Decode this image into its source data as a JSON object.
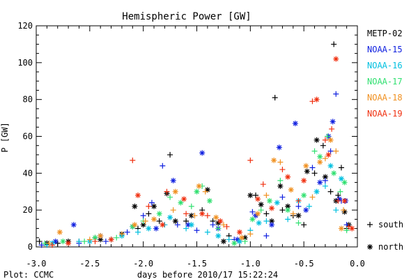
{
  "chart_data": {
    "type": "scatter",
    "title": "Hemispheric Power [GW]",
    "xlabel": "days before 2010/17 15:22:24",
    "ylabel": "P [GW]",
    "xlim": [
      -3.0,
      0.0
    ],
    "ylim": [
      0,
      120
    ],
    "x_ticks": [
      "-3.0",
      "-2.5",
      "-2.0",
      "-1.5",
      "-1.0",
      "-0.5",
      "0.0"
    ],
    "y_ticks": [
      "0",
      "20",
      "40",
      "60",
      "80",
      "100",
      "120"
    ],
    "grid": false,
    "legend_position": "right",
    "hemisphere_legend": [
      {
        "symbol": "+",
        "label": "south"
      },
      {
        "symbol": "*",
        "label": "north"
      }
    ],
    "series": [
      {
        "name": "METP-02",
        "color": "#000000",
        "south": [
          [
            -2.97,
            3
          ],
          [
            -2.8,
            2
          ],
          [
            -2.6,
            3
          ],
          [
            -2.45,
            5
          ],
          [
            -2.3,
            4
          ],
          [
            -2.05,
            10
          ],
          [
            -1.95,
            18
          ],
          [
            -1.85,
            14
          ],
          [
            -1.75,
            50
          ],
          [
            -1.6,
            14
          ],
          [
            -1.45,
            20
          ],
          [
            -1.35,
            14
          ],
          [
            -1.2,
            6
          ],
          [
            -1.1,
            3
          ],
          [
            -0.95,
            28
          ],
          [
            -0.85,
            18
          ],
          [
            -0.77,
            81
          ],
          [
            -0.7,
            20
          ],
          [
            -0.6,
            17
          ],
          [
            -0.5,
            12
          ],
          [
            -0.4,
            40
          ],
          [
            -0.32,
            55
          ],
          [
            -0.25,
            30
          ],
          [
            -0.22,
            110
          ],
          [
            -0.18,
            28
          ],
          [
            -0.15,
            43
          ],
          [
            -0.1,
            10
          ]
        ],
        "north": [
          [
            -2.9,
            2
          ],
          [
            -2.7,
            3
          ],
          [
            -2.4,
            4
          ],
          [
            -2.2,
            7
          ],
          [
            -2.08,
            22
          ],
          [
            -2.0,
            12
          ],
          [
            -1.9,
            22
          ],
          [
            -1.78,
            29
          ],
          [
            -1.7,
            14
          ],
          [
            -1.55,
            17
          ],
          [
            -1.4,
            31
          ],
          [
            -1.3,
            13
          ],
          [
            -1.25,
            3
          ],
          [
            -1.05,
            5
          ],
          [
            -1.0,
            28
          ],
          [
            -0.9,
            23
          ],
          [
            -0.8,
            14
          ],
          [
            -0.72,
            33
          ],
          [
            -0.65,
            22
          ],
          [
            -0.55,
            17
          ],
          [
            -0.47,
            41
          ],
          [
            -0.38,
            58
          ],
          [
            -0.3,
            38
          ],
          [
            -0.2,
            25
          ],
          [
            -0.12,
            19
          ],
          [
            -0.08,
            12
          ]
        ]
      },
      {
        "name": "NOAA-15",
        "color": "#1020e0",
        "south": [
          [
            -2.95,
            1
          ],
          [
            -2.6,
            2
          ],
          [
            -2.35,
            3
          ],
          [
            -2.15,
            8
          ],
          [
            -2.0,
            17
          ],
          [
            -1.92,
            24
          ],
          [
            -1.82,
            44
          ],
          [
            -1.68,
            12
          ],
          [
            -1.5,
            9
          ],
          [
            -1.35,
            12
          ],
          [
            -1.15,
            4
          ],
          [
            -0.98,
            19
          ],
          [
            -0.85,
            6
          ],
          [
            -0.7,
            27
          ],
          [
            -0.55,
            22
          ],
          [
            -0.42,
            43
          ],
          [
            -0.3,
            36
          ],
          [
            -0.25,
            52
          ],
          [
            -0.2,
            83
          ],
          [
            -0.15,
            25
          ],
          [
            -0.1,
            12
          ]
        ],
        "north": [
          [
            -2.82,
            3
          ],
          [
            -2.65,
            12
          ],
          [
            -2.4,
            6
          ],
          [
            -2.1,
            11
          ],
          [
            -1.88,
            10
          ],
          [
            -1.72,
            36
          ],
          [
            -1.58,
            12
          ],
          [
            -1.45,
            51
          ],
          [
            -1.3,
            10
          ],
          [
            -1.12,
            4
          ],
          [
            -0.95,
            17
          ],
          [
            -0.8,
            12
          ],
          [
            -0.73,
            54
          ],
          [
            -0.58,
            67
          ],
          [
            -0.48,
            20
          ],
          [
            -0.35,
            35
          ],
          [
            -0.27,
            60
          ],
          [
            -0.23,
            68
          ],
          [
            -0.17,
            26
          ],
          [
            -0.11,
            25
          ]
        ]
      },
      {
        "name": "NOAA-16",
        "color": "#00c0e0",
        "south": [
          [
            -2.9,
            1
          ],
          [
            -2.6,
            3
          ],
          [
            -2.3,
            4
          ],
          [
            -2.05,
            8
          ],
          [
            -1.8,
            12
          ],
          [
            -1.6,
            10
          ],
          [
            -1.4,
            8
          ],
          [
            -1.2,
            4
          ],
          [
            -1.0,
            9
          ],
          [
            -0.85,
            14
          ],
          [
            -0.65,
            15
          ],
          [
            -0.45,
            22
          ],
          [
            -0.3,
            33
          ],
          [
            -0.2,
            20
          ]
        ],
        "north": [
          [
            -2.85,
            2
          ],
          [
            -2.5,
            3
          ],
          [
            -2.2,
            6
          ],
          [
            -1.95,
            10
          ],
          [
            -1.75,
            16
          ],
          [
            -1.55,
            12
          ],
          [
            -1.3,
            6
          ],
          [
            -1.1,
            3
          ],
          [
            -0.92,
            13
          ],
          [
            -0.75,
            24
          ],
          [
            -0.55,
            25
          ],
          [
            -0.38,
            30
          ],
          [
            -0.25,
            44
          ],
          [
            -0.15,
            37
          ]
        ]
      },
      {
        "name": "NOAA-17",
        "color": "#30e070",
        "south": [
          [
            -2.92,
            2
          ],
          [
            -2.55,
            3
          ],
          [
            -2.25,
            5
          ],
          [
            -2.0,
            14
          ],
          [
            -1.75,
            27
          ],
          [
            -1.55,
            22
          ],
          [
            -1.45,
            33
          ],
          [
            -1.3,
            10
          ],
          [
            -1.05,
            3
          ],
          [
            -0.9,
            20
          ],
          [
            -0.72,
            36
          ],
          [
            -0.55,
            13
          ],
          [
            -0.4,
            52
          ],
          [
            -0.28,
            60
          ],
          [
            -0.16,
            30
          ],
          [
            -0.1,
            9
          ]
        ],
        "north": [
          [
            -2.75,
            3
          ],
          [
            -2.45,
            5
          ],
          [
            -2.1,
            11
          ],
          [
            -1.85,
            18
          ],
          [
            -1.65,
            24
          ],
          [
            -1.5,
            30
          ],
          [
            -1.38,
            25
          ],
          [
            -1.15,
            2
          ],
          [
            -0.98,
            15
          ],
          [
            -0.82,
            25
          ],
          [
            -0.65,
            20
          ],
          [
            -0.5,
            28
          ],
          [
            -0.35,
            49
          ],
          [
            -0.22,
            40
          ],
          [
            -0.12,
            35
          ]
        ]
      },
      {
        "name": "NOAA-18",
        "color": "#f09020",
        "south": [
          [
            -2.88,
            2
          ],
          [
            -2.5,
            4
          ],
          [
            -2.2,
            7
          ],
          [
            -1.98,
            14
          ],
          [
            -1.72,
            20
          ],
          [
            -1.52,
            17
          ],
          [
            -1.42,
            30
          ],
          [
            -1.25,
            12
          ],
          [
            -1.0,
            7
          ],
          [
            -0.85,
            28
          ],
          [
            -0.72,
            46
          ],
          [
            -0.6,
            18
          ],
          [
            -0.42,
            27
          ],
          [
            -0.3,
            48
          ],
          [
            -0.2,
            52
          ],
          [
            -0.13,
            20
          ]
        ],
        "north": [
          [
            -2.78,
            8
          ],
          [
            -2.4,
            6
          ],
          [
            -2.08,
            12
          ],
          [
            -1.9,
            15
          ],
          [
            -1.7,
            30
          ],
          [
            -1.48,
            33
          ],
          [
            -1.32,
            16
          ],
          [
            -1.08,
            5
          ],
          [
            -0.93,
            18
          ],
          [
            -0.78,
            47
          ],
          [
            -0.62,
            31
          ],
          [
            -0.48,
            44
          ],
          [
            -0.35,
            46
          ],
          [
            -0.25,
            58
          ],
          [
            -0.15,
            10
          ]
        ]
      },
      {
        "name": "NOAA-19",
        "color": "#f03010",
        "south": [
          [
            -2.85,
            1
          ],
          [
            -2.45,
            3
          ],
          [
            -2.1,
            47
          ],
          [
            -1.95,
            22
          ],
          [
            -1.78,
            30
          ],
          [
            -1.6,
            18
          ],
          [
            -1.4,
            17
          ],
          [
            -1.22,
            11
          ],
          [
            -1.0,
            47
          ],
          [
            -0.88,
            34
          ],
          [
            -0.7,
            42
          ],
          [
            -0.55,
            25
          ],
          [
            -0.42,
            79
          ],
          [
            -0.3,
            58
          ],
          [
            -0.24,
            64
          ],
          [
            -0.18,
            25
          ],
          [
            -0.08,
            11
          ]
        ],
        "north": [
          [
            -2.7,
            2
          ],
          [
            -2.3,
            4
          ],
          [
            -2.05,
            28
          ],
          [
            -1.82,
            12
          ],
          [
            -1.62,
            26
          ],
          [
            -1.45,
            18
          ],
          [
            -1.28,
            14
          ],
          [
            -1.1,
            8
          ],
          [
            -0.93,
            26
          ],
          [
            -0.8,
            21
          ],
          [
            -0.65,
            38
          ],
          [
            -0.5,
            36
          ],
          [
            -0.38,
            80
          ],
          [
            -0.27,
            50
          ],
          [
            -0.2,
            102
          ],
          [
            -0.12,
            25
          ],
          [
            -0.05,
            10
          ]
        ]
      }
    ]
  },
  "footer": {
    "credit": "Plot: CCMC"
  }
}
